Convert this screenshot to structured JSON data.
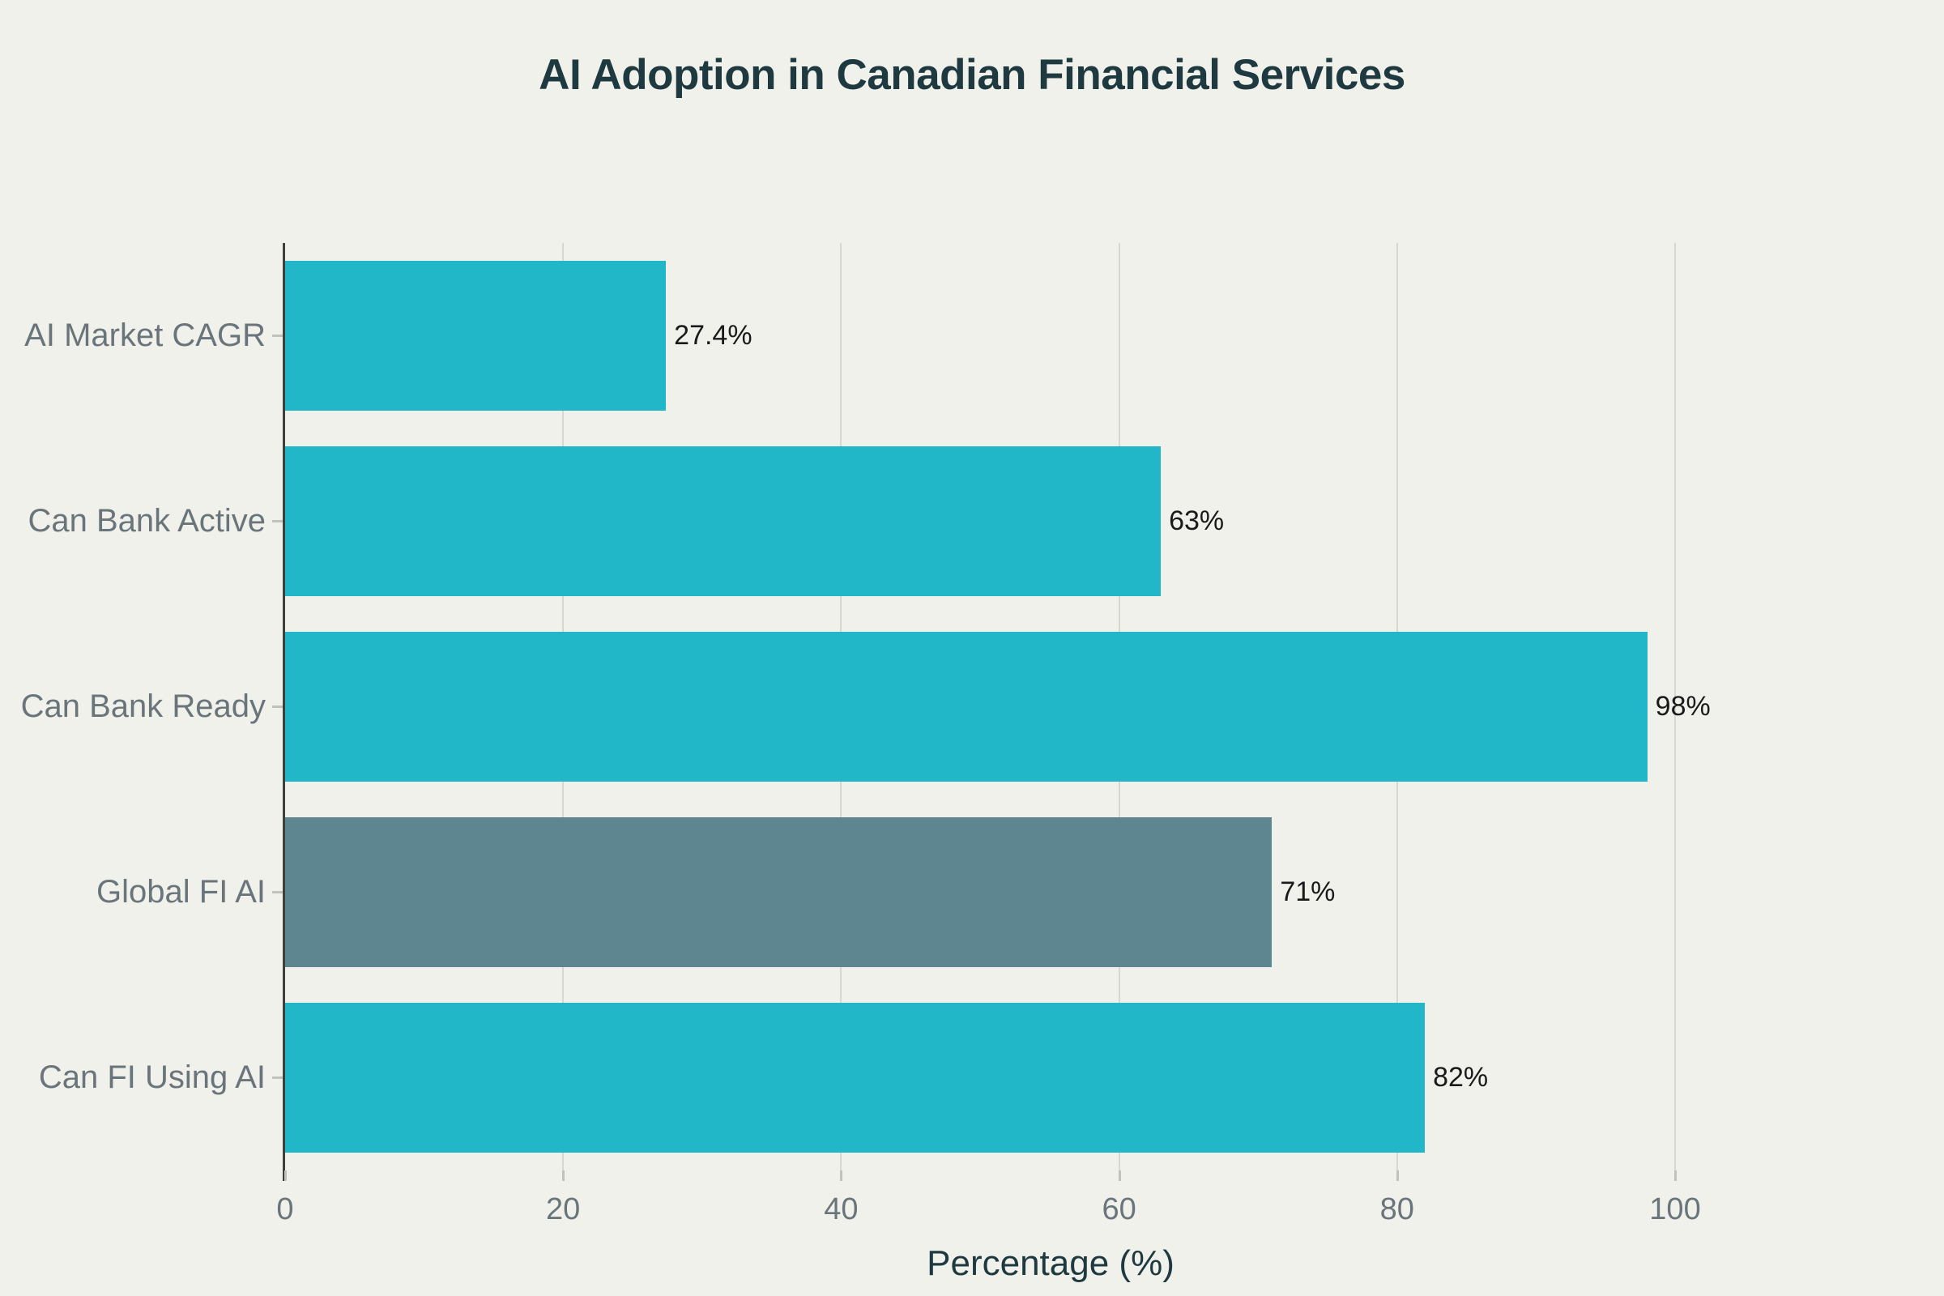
{
  "chart_data": {
    "type": "bar",
    "orientation": "horizontal",
    "title": "AI Adoption in Canadian Financial Services",
    "xlabel": "Percentage (%)",
    "categories": [
      "AI Market CAGR",
      "Can Bank Active",
      "Can Bank Ready",
      "Global FI AI",
      "Can FI Using AI"
    ],
    "values": [
      27.4,
      63,
      98,
      71,
      82
    ],
    "value_labels": [
      "27.4%",
      "63%",
      "98%",
      "71%",
      "82%"
    ],
    "bar_colors": [
      "#22b6c9",
      "#22b6c9",
      "#22b6c9",
      "#5d8691",
      "#22b6c9"
    ],
    "xticks": [
      "0",
      "20",
      "40",
      "60",
      "80",
      "100"
    ],
    "xtick_values": [
      0,
      20,
      40,
      60,
      80,
      100
    ],
    "xlim": [
      0,
      100
    ],
    "grid": "vertical-only",
    "legend": "none",
    "theme": {
      "background": "#f1f1eb",
      "bar_teal": "#22b6c9",
      "bar_slate": "#5d8691",
      "title_color": "#1e3a40",
      "axis_label_color": "#1e3a40",
      "tick_label_color": "#6a757b",
      "value_label_color": "#1a1a1a",
      "gridline_color": "#d8d8d1",
      "axis_line_color": "#3f3f3a",
      "minor_tick_color": "#c2c2bb"
    }
  }
}
